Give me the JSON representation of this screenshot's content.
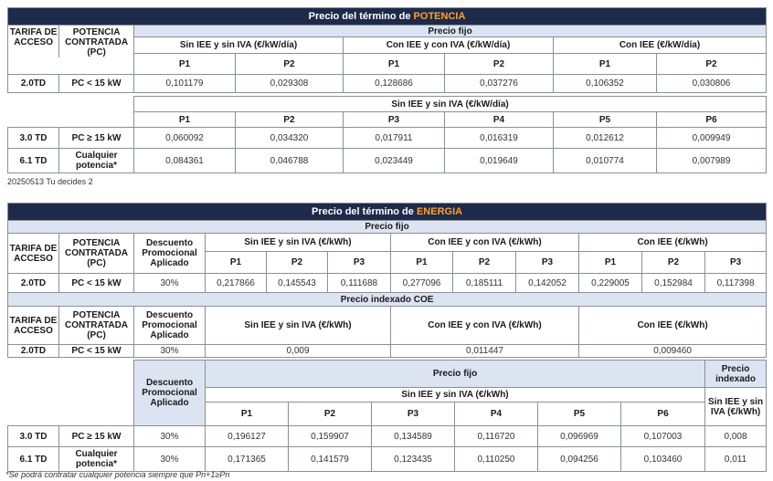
{
  "potencia": {
    "title_prefix": "Precio del término de ",
    "title_accent": "POTENCIA",
    "precio_fijo": "Precio fijo",
    "col_tarifa": "TARIFA DE ACCESO",
    "col_potencia": "POTENCIA CONTRATADA (PC)",
    "groups": [
      "Sin IEE y sin IVA (€/kW/día)",
      "Con IEE y con IVA (€/kW/día)",
      "Con IEE (€/kW/día)"
    ],
    "p12": [
      "P1",
      "P2"
    ],
    "row_20": {
      "tarifa": "2.0TD",
      "pc": "PC < 15 kW",
      "values": [
        "0,101179",
        "0,029308",
        "0,128686",
        "0,037276",
        "0,106352",
        "0,030806"
      ]
    },
    "group6": "Sin IEE y sin IVA (€/kW/día)",
    "p6": [
      "P1",
      "P2",
      "P3",
      "P4",
      "P5",
      "P6"
    ],
    "rows6": [
      {
        "tarifa": "3.0 TD",
        "pc": "PC ≥ 15 kW",
        "values": [
          "0,060092",
          "0,034320",
          "0,017911",
          "0,016319",
          "0,012612",
          "0,009949"
        ]
      },
      {
        "tarifa": "6.1 TD",
        "pc": "Cualquier potencia*",
        "values": [
          "0,084361",
          "0,046788",
          "0,023449",
          "0,019649",
          "0,010774",
          "0,007989"
        ]
      }
    ]
  },
  "doc_code": "20250513 Tu decides 2",
  "energia": {
    "title_prefix": "Precio del término de ",
    "title_accent": "ENERGIA",
    "precio_fijo": "Precio fijo",
    "col_tarifa": "TARIFA DE ACCESO",
    "col_potencia": "POTENCIA CONTRATADA (PC)",
    "col_descuento": "Descuento Promocional Aplicado",
    "groups": [
      "Sin IEE y sin IVA (€/kWh)",
      "Con IEE y con IVA (€/kWh)",
      "Con IEE (€/kWh)"
    ],
    "p123": [
      "P1",
      "P2",
      "P3"
    ],
    "row_20": {
      "tarifa": "2.0TD",
      "pc": "PC < 15 kW",
      "descuento": "30%",
      "values": [
        "0,217866",
        "0,145543",
        "0,111688",
        "0,277096",
        "0,185111",
        "0,142052",
        "0,229005",
        "0,152984",
        "0,117398"
      ]
    },
    "indexado_title": "Precio indexado COE",
    "idx_groups": [
      "Sin IEE y sin IVA (€/kWh)",
      "Con IEE y con IVA (€/kWh)",
      "Con IEE (€/kWh)"
    ],
    "row_idx": {
      "tarifa": "2.0TD",
      "pc": "PC < 15 kW",
      "descuento": "30%",
      "values": [
        "0,009",
        "0,011447",
        "0,009460"
      ]
    },
    "precio_fijo2": "Precio fijo",
    "precio_indexado": "Precio indexado",
    "descuento2": "Descuento Promocional Aplicado",
    "group6": "Sin IEE y sin IVA (€/kWh)",
    "group_idx_col": "Sin IEE y sin IVA (€/kWh)",
    "p6": [
      "P1",
      "P2",
      "P3",
      "P4",
      "P5",
      "P6"
    ],
    "rows6": [
      {
        "tarifa": "3.0 TD",
        "pc": "PC ≥ 15 kW",
        "descuento": "30%",
        "values": [
          "0,196127",
          "0,159907",
          "0,134589",
          "0,116720",
          "0,096969",
          "0,107003"
        ],
        "indexado": "0,008"
      },
      {
        "tarifa": "6.1 TD",
        "pc": "Cualquier potencia*",
        "descuento": "30%",
        "values": [
          "0,171365",
          "0,141579",
          "0,123435",
          "0,110250",
          "0,094256",
          "0,103460"
        ],
        "indexado": "0,011"
      }
    ]
  },
  "footnote": "*Se podrá contratar cualquier potencia siempre que Pn+1≥Pn"
}
